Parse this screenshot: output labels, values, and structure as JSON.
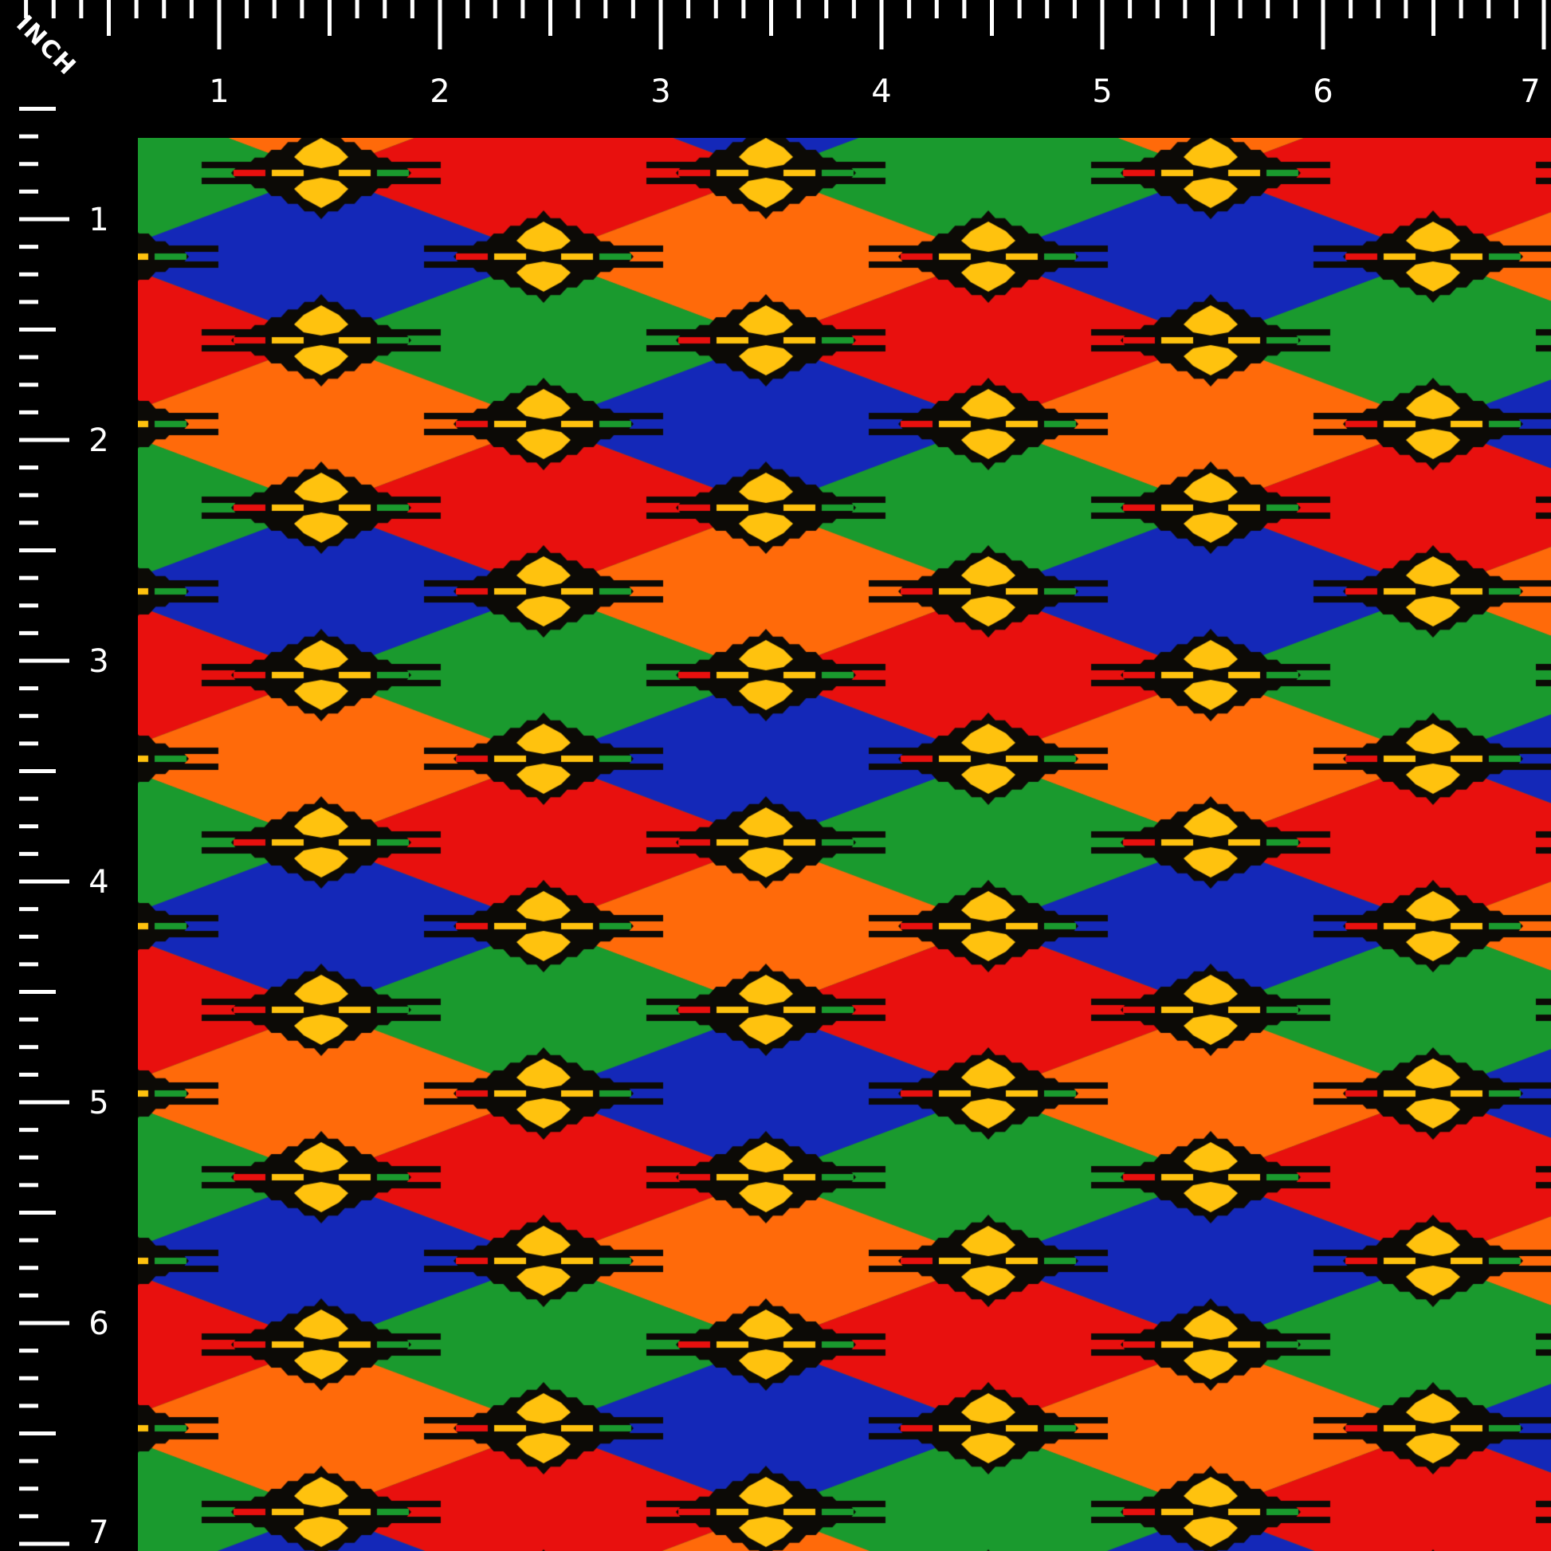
{
  "ruler": {
    "unit_label": "INCH",
    "top_labels": [
      "1",
      "2",
      "3",
      "4",
      "5",
      "6",
      "7"
    ],
    "left_labels": [
      "1",
      "2",
      "3",
      "4",
      "5",
      "6",
      "7"
    ],
    "subdivisions_per_inch": 8
  },
  "fabric": {
    "pattern": "ikat diamond with stepped black and yellow motifs",
    "colors": {
      "green": "#1a9a2e",
      "blue": "#1428b8",
      "red": "#e8100e",
      "orange": "#ff6a0a",
      "motif_black": "#0c0a06",
      "motif_yellow": "#ffc20e",
      "background": "#000000"
    }
  }
}
